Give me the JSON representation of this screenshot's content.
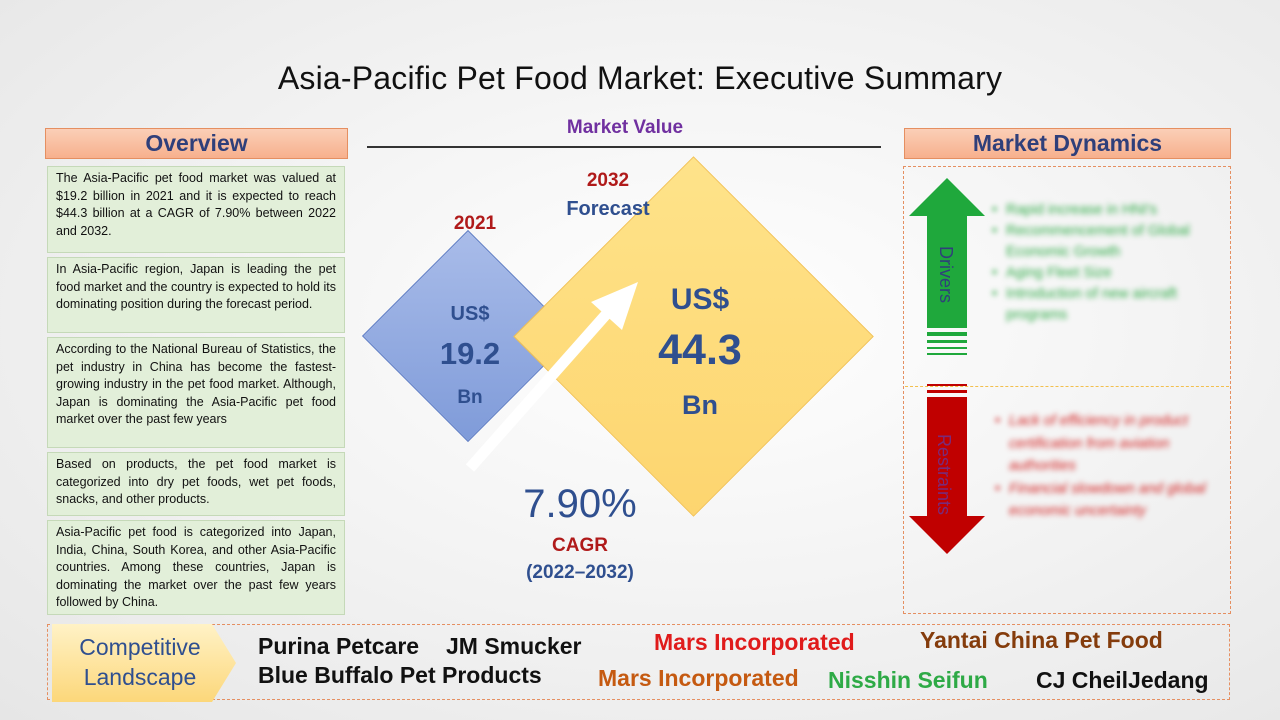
{
  "title": "Asia-Pacific Pet Food Market: Executive Summary",
  "overview": {
    "heading": "Overview",
    "paragraphs": [
      "The Asia-Pacific pet food market was valued at $19.2 billion in 2021 and it is expected to reach $44.3 billion at a CAGR of 7.90% between 2022 and 2032.",
      "In Asia-Pacific region, Japan is leading the pet food market and the country is expected to hold its dominating position during the forecast period.",
      "According to the National Bureau of Statistics, the pet industry in China has become the fastest-growing industry in the pet food market. Although, Japan is dominating the Asia-Pacific pet food market over the past few years",
      "Based on products, the pet food market is categorized into dry pet foods, wet pet foods, snacks, and other products.",
      "Asia-Pacific pet food is categorized into Japan, India, China, South Korea, and other Asia-Pacific countries. Among these countries, Japan is dominating the market over the past few years followed by China."
    ]
  },
  "market_value": {
    "heading": "Market Value",
    "base": {
      "year": "2021",
      "currency": "US$",
      "value": "19.2",
      "unit": "Bn"
    },
    "forecast": {
      "year": "2032",
      "label": "Forecast",
      "currency": "US$",
      "value": "44.3",
      "unit": "Bn"
    },
    "cagr": {
      "value": "7.90%",
      "label": "CAGR",
      "period": "(2022–2032)"
    }
  },
  "market_dynamics": {
    "heading": "Market Dynamics",
    "drivers_label": "Drivers",
    "restraints_label": "Restraints",
    "drivers": [
      "Rapid increase in HNI's",
      "Recommencement of Global Economic Growth",
      "Aging Fleet Size",
      "Introduction of new aircraft programs"
    ],
    "restraints": [
      "Lack of efficiency in product certification from aviation authorities",
      "Financial slowdown and global economic uncertainty"
    ]
  },
  "competitive_landscape": {
    "label": "Competitive Landscape",
    "companies": [
      {
        "name": "Purina Petcare",
        "color": "#111111"
      },
      {
        "name": "JM Smucker",
        "color": "#111111"
      },
      {
        "name": "Blue Buffalo Pet Products",
        "color": "#111111"
      },
      {
        "name": "Mars Incorporated",
        "color": "#e01b1b"
      },
      {
        "name": "Mars Incorporated",
        "color": "#c55a11"
      },
      {
        "name": "Yantai China Pet Food",
        "color": "#843c0c"
      },
      {
        "name": "Nisshin Seifun",
        "color": "#2eaa46"
      },
      {
        "name": "CJ CheilJedang",
        "color": "#111111"
      }
    ]
  },
  "colors": {
    "header_fill": "#f7b08d",
    "header_text": "#2f3f7a",
    "overview_fill": "#e2efd9",
    "diamond_2021": "#8fa8e0",
    "diamond_2032": "#fdd56f",
    "drivers_arrow": "#1fa83c",
    "restraints_arrow": "#c00000"
  }
}
